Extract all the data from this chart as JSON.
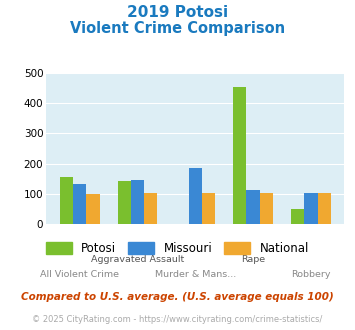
{
  "title_line1": "2019 Potosi",
  "title_line2": "Violent Crime Comparison",
  "title_color": "#1a7abf",
  "categories": [
    "All Violent Crime",
    "Aggravated Assault",
    "Murder & Mans...",
    "Rape",
    "Robbery"
  ],
  "top_labels": [
    "",
    "Aggravated Assault",
    "",
    "Rape",
    ""
  ],
  "bottom_labels": [
    "All Violent Crime",
    "",
    "Murder & Mans...",
    "",
    "Robbery"
  ],
  "potosi": [
    155,
    143,
    0,
    452,
    50
  ],
  "missouri": [
    133,
    145,
    185,
    113,
    103
  ],
  "national": [
    100,
    102,
    103,
    103,
    103
  ],
  "potosi_color": "#7abf2e",
  "missouri_color": "#3a88d4",
  "national_color": "#f0a830",
  "bg_color": "#ddeef5",
  "ylim": [
    0,
    500
  ],
  "yticks": [
    0,
    100,
    200,
    300,
    400,
    500
  ],
  "legend_labels": [
    "Potosi",
    "Missouri",
    "National"
  ],
  "footnote1": "Compared to U.S. average. (U.S. average equals 100)",
  "footnote2": "© 2025 CityRating.com - https://www.cityrating.com/crime-statistics/",
  "footnote1_color": "#cc4400",
  "footnote2_color": "#aaaaaa",
  "footnote2_link_color": "#3a88d4"
}
